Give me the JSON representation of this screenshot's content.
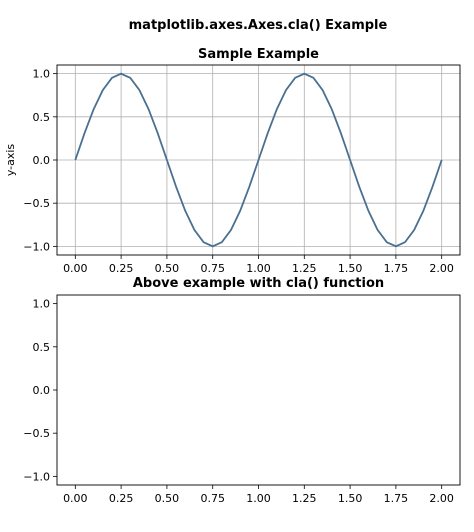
{
  "figure": {
    "suptitle": "matplotlib.axes.Axes.cla() Example"
  },
  "chart_data": [
    {
      "type": "line",
      "title": "Sample Example",
      "xlabel": "",
      "ylabel": "y-axis",
      "xlim": [
        -0.1,
        2.1
      ],
      "ylim": [
        -1.1,
        1.1
      ],
      "grid": true,
      "x_ticks": [
        0.0,
        0.25,
        0.5,
        0.75,
        1.0,
        1.25,
        1.5,
        1.75,
        2.0
      ],
      "x_tick_labels": [
        "0.00",
        "0.25",
        "0.50",
        "0.75",
        "1.00",
        "1.25",
        "1.50",
        "1.75",
        "2.00"
      ],
      "y_ticks": [
        1.0,
        0.5,
        0.0,
        -0.5,
        -1.0
      ],
      "y_tick_labels": [
        "1.0",
        "0.5",
        "0.0",
        "−0.5",
        "−1.0"
      ],
      "series": [
        {
          "color": "#4a7090",
          "x": [
            0.0,
            0.05,
            0.1,
            0.15,
            0.2,
            0.25,
            0.3,
            0.35,
            0.4,
            0.45,
            0.5,
            0.55,
            0.6,
            0.65,
            0.7,
            0.75,
            0.8,
            0.85,
            0.9,
            0.95,
            1.0,
            1.05,
            1.1,
            1.15,
            1.2,
            1.25,
            1.3,
            1.35,
            1.4,
            1.45,
            1.5,
            1.55,
            1.6,
            1.65,
            1.7,
            1.75,
            1.8,
            1.85,
            1.9,
            1.95,
            2.0
          ],
          "y": [
            0.0,
            0.309,
            0.588,
            0.809,
            0.951,
            1.0,
            0.951,
            0.809,
            0.588,
            0.309,
            0.0,
            -0.309,
            -0.588,
            -0.809,
            -0.951,
            -1.0,
            -0.951,
            -0.809,
            -0.588,
            -0.309,
            0.0,
            0.309,
            0.588,
            0.809,
            0.951,
            1.0,
            0.951,
            0.809,
            0.588,
            0.309,
            0.0,
            -0.309,
            -0.588,
            -0.809,
            -0.951,
            -1.0,
            -0.951,
            -0.809,
            -0.588,
            -0.309,
            0.0
          ]
        }
      ]
    },
    {
      "type": "line",
      "title": "Above example with cla() function",
      "xlabel": "",
      "ylabel": "",
      "xlim": [
        -0.1,
        2.1
      ],
      "ylim": [
        -1.1,
        1.1
      ],
      "grid": false,
      "x_ticks": [
        0.0,
        0.25,
        0.5,
        0.75,
        1.0,
        1.25,
        1.5,
        1.75,
        2.0
      ],
      "x_tick_labels": [
        "0.00",
        "0.25",
        "0.50",
        "0.75",
        "1.00",
        "1.25",
        "1.50",
        "1.75",
        "2.00"
      ],
      "y_ticks": [
        1.0,
        0.5,
        0.0,
        -0.5,
        -1.0
      ],
      "y_tick_labels": [
        "1.0",
        "0.5",
        "0.0",
        "−0.5",
        "−1.0"
      ],
      "series": []
    }
  ]
}
